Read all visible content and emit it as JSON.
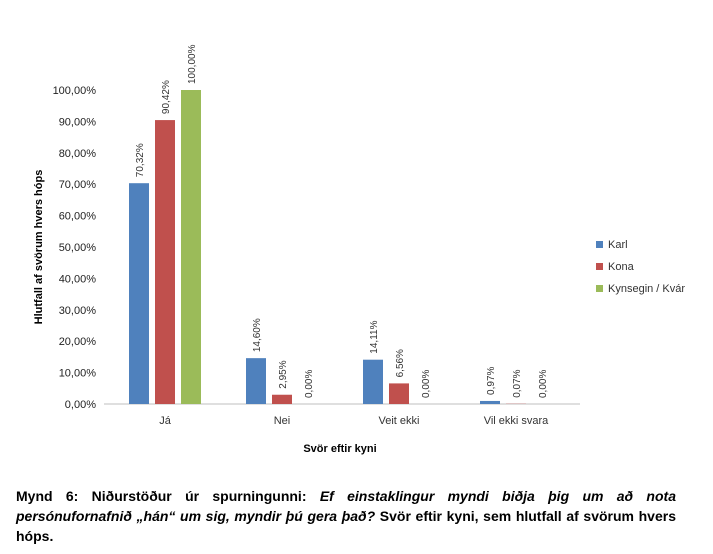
{
  "chart_data": {
    "type": "bar",
    "categories": [
      "Já",
      "Nei",
      "Veit ekki",
      "Vil ekki svara"
    ],
    "series": [
      {
        "name": "Karl",
        "color": "#4f81bd",
        "values": [
          70.32,
          14.6,
          14.11,
          0.97
        ],
        "labels": [
          "70,32%",
          "14,60%",
          "14,11%",
          "0,97%"
        ]
      },
      {
        "name": "Kona",
        "color": "#c0504d",
        "values": [
          90.42,
          2.95,
          6.56,
          0.07
        ],
        "labels": [
          "90,42%",
          "2,95%",
          "6,56%",
          "0,07%"
        ]
      },
      {
        "name": "Kynsegin / Kvár",
        "color": "#9bbb59",
        "values": [
          100.0,
          0.0,
          0.0,
          0.0
        ],
        "labels": [
          "100,00%",
          "0,00%",
          "0,00%",
          "0,00%"
        ]
      }
    ],
    "ylim": [
      0,
      100
    ],
    "yticks": [
      0,
      10,
      20,
      30,
      40,
      50,
      60,
      70,
      80,
      90,
      100
    ],
    "ytick_labels": [
      "0,00%",
      "10,00%",
      "20,00%",
      "30,00%",
      "40,00%",
      "50,00%",
      "60,00%",
      "70,00%",
      "80,00%",
      "90,00%",
      "100,00%"
    ],
    "xlabel": "Svör eftir kyni",
    "ylabel": "Hlutfall af svörum hvers hóps",
    "legend_position": "right",
    "grid": false
  },
  "caption": {
    "part1": "Mynd 6: Niðurstöður úr spurningunni: ",
    "part2": "Ef einstaklingur myndi biðja þig um að nota persónufornafnið „hán“ um sig, myndir þú gera það?",
    "part3": " Svör eftir kyni, sem hlutfall af svörum hvers hóps."
  }
}
